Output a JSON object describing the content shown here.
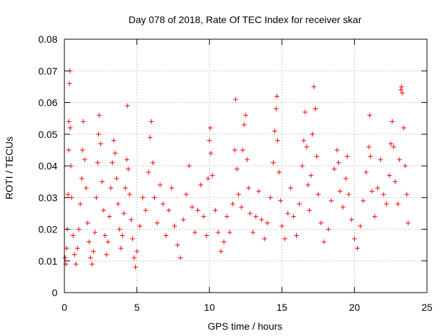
{
  "chart_data": {
    "type": "scatter",
    "title": "Day 078 of 2018, Rate Of TEC Index for receiver skar",
    "xlabel": "GPS time / hours",
    "ylabel": "ROTI / TECUs",
    "xlim": [
      0,
      25
    ],
    "ylim": [
      0,
      0.08
    ],
    "xticks": [
      {
        "value": 0,
        "label": "0"
      },
      {
        "value": 5,
        "label": "5"
      },
      {
        "value": 10,
        "label": "10"
      },
      {
        "value": 15,
        "label": "15"
      },
      {
        "value": 20,
        "label": "20"
      },
      {
        "value": 25,
        "label": "25"
      }
    ],
    "yticks": [
      {
        "value": 0,
        "label": "0"
      },
      {
        "value": 0.01,
        "label": "0.01"
      },
      {
        "value": 0.02,
        "label": "0.02"
      },
      {
        "value": 0.03,
        "label": "0.03"
      },
      {
        "value": 0.04,
        "label": "0.04"
      },
      {
        "value": 0.05,
        "label": "0.05"
      },
      {
        "value": 0.06,
        "label": "0.06"
      },
      {
        "value": 0.07,
        "label": "0.07"
      },
      {
        "value": 0.08,
        "label": "0.08"
      }
    ],
    "grid": true,
    "marker": "+",
    "color": "#ff0000",
    "series": [
      {
        "name": "ROTI",
        "points": [
          [
            0.05,
            0.011
          ],
          [
            0.1,
            0.009
          ],
          [
            0.15,
            0.014
          ],
          [
            0.2,
            0.02
          ],
          [
            0.25,
            0.031
          ],
          [
            0.3,
            0.045
          ],
          [
            0.3,
            0.054
          ],
          [
            0.35,
            0.066
          ],
          [
            0.38,
            0.07
          ],
          [
            0.4,
            0.052
          ],
          [
            0.45,
            0.04
          ],
          [
            0.5,
            0.03
          ],
          [
            0.6,
            0.018
          ],
          [
            0.7,
            0.012
          ],
          [
            0.8,
            0.009
          ],
          [
            0.9,
            0.014
          ],
          [
            1.0,
            0.02
          ],
          [
            1.1,
            0.028
          ],
          [
            1.2,
            0.036
          ],
          [
            1.25,
            0.045
          ],
          [
            1.3,
            0.054
          ],
          [
            1.4,
            0.042
          ],
          [
            1.5,
            0.033
          ],
          [
            1.6,
            0.022
          ],
          [
            1.7,
            0.016
          ],
          [
            1.8,
            0.011
          ],
          [
            1.9,
            0.009
          ],
          [
            2.0,
            0.013
          ],
          [
            2.1,
            0.019
          ],
          [
            2.2,
            0.03
          ],
          [
            2.3,
            0.041
          ],
          [
            2.35,
            0.05
          ],
          [
            2.4,
            0.056
          ],
          [
            2.5,
            0.047
          ],
          [
            2.6,
            0.035
          ],
          [
            2.7,
            0.026
          ],
          [
            2.8,
            0.018
          ],
          [
            2.9,
            0.012
          ],
          [
            3.0,
            0.016
          ],
          [
            3.1,
            0.024
          ],
          [
            3.2,
            0.033
          ],
          [
            3.3,
            0.041
          ],
          [
            3.4,
            0.048
          ],
          [
            3.5,
            0.044
          ],
          [
            3.6,
            0.036
          ],
          [
            3.7,
            0.028
          ],
          [
            3.8,
            0.02
          ],
          [
            3.9,
            0.014
          ],
          [
            4.0,
            0.018
          ],
          [
            4.1,
            0.025
          ],
          [
            4.2,
            0.033
          ],
          [
            4.3,
            0.042
          ],
          [
            4.35,
            0.059
          ],
          [
            4.4,
            0.039
          ],
          [
            4.5,
            0.031
          ],
          [
            4.6,
            0.023
          ],
          [
            4.7,
            0.017
          ],
          [
            4.8,
            0.011
          ],
          [
            4.9,
            0.008
          ],
          [
            5.0,
            0.013
          ],
          [
            5.2,
            0.021
          ],
          [
            5.4,
            0.03
          ],
          [
            5.6,
            0.026
          ],
          [
            5.8,
            0.038
          ],
          [
            5.9,
            0.049
          ],
          [
            6.0,
            0.054
          ],
          [
            6.1,
            0.041
          ],
          [
            6.2,
            0.03
          ],
          [
            6.4,
            0.022
          ],
          [
            6.6,
            0.034
          ],
          [
            6.8,
            0.028
          ],
          [
            7.0,
            0.018
          ],
          [
            7.2,
            0.026
          ],
          [
            7.4,
            0.033
          ],
          [
            7.6,
            0.021
          ],
          [
            7.8,
            0.015
          ],
          [
            8.0,
            0.011
          ],
          [
            8.2,
            0.023
          ],
          [
            8.4,
            0.031
          ],
          [
            8.6,
            0.04
          ],
          [
            8.8,
            0.027
          ],
          [
            9.0,
            0.019
          ],
          [
            9.2,
            0.026
          ],
          [
            9.4,
            0.034
          ],
          [
            9.6,
            0.024
          ],
          [
            9.8,
            0.018
          ],
          [
            9.9,
            0.036
          ],
          [
            10.0,
            0.048
          ],
          [
            10.05,
            0.052
          ],
          [
            10.1,
            0.044
          ],
          [
            10.2,
            0.037
          ],
          [
            10.4,
            0.026
          ],
          [
            10.6,
            0.019
          ],
          [
            10.8,
            0.013
          ],
          [
            11.0,
            0.016
          ],
          [
            11.2,
            0.024
          ],
          [
            11.4,
            0.019
          ],
          [
            11.6,
            0.028
          ],
          [
            11.75,
            0.045
          ],
          [
            11.8,
            0.061
          ],
          [
            11.9,
            0.039
          ],
          [
            12.0,
            0.031
          ],
          [
            12.2,
            0.027
          ],
          [
            12.3,
            0.045
          ],
          [
            12.4,
            0.053
          ],
          [
            12.5,
            0.056
          ],
          [
            12.6,
            0.042
          ],
          [
            12.7,
            0.033
          ],
          [
            12.8,
            0.025
          ],
          [
            13.0,
            0.019
          ],
          [
            13.2,
            0.024
          ],
          [
            13.4,
            0.032
          ],
          [
            13.6,
            0.023
          ],
          [
            13.8,
            0.017
          ],
          [
            14.0,
            0.022
          ],
          [
            14.2,
            0.03
          ],
          [
            14.4,
            0.041
          ],
          [
            14.5,
            0.051
          ],
          [
            14.6,
            0.058
          ],
          [
            14.65,
            0.062
          ],
          [
            14.7,
            0.048
          ],
          [
            14.8,
            0.038
          ],
          [
            14.9,
            0.029
          ],
          [
            15.0,
            0.021
          ],
          [
            15.2,
            0.017
          ],
          [
            15.4,
            0.025
          ],
          [
            15.6,
            0.033
          ],
          [
            15.8,
            0.024
          ],
          [
            16.0,
            0.018
          ],
          [
            16.2,
            0.028
          ],
          [
            16.4,
            0.04
          ],
          [
            16.5,
            0.048
          ],
          [
            16.6,
            0.057
          ],
          [
            16.7,
            0.046
          ],
          [
            16.8,
            0.034
          ],
          [
            16.9,
            0.026
          ],
          [
            17.0,
            0.037
          ],
          [
            17.1,
            0.05
          ],
          [
            17.2,
            0.065
          ],
          [
            17.3,
            0.058
          ],
          [
            17.4,
            0.043
          ],
          [
            17.5,
            0.031
          ],
          [
            17.7,
            0.022
          ],
          [
            17.9,
            0.016
          ],
          [
            18.2,
            0.02
          ],
          [
            18.4,
            0.029
          ],
          [
            18.6,
            0.039
          ],
          [
            18.8,
            0.045
          ],
          [
            18.9,
            0.041
          ],
          [
            19.0,
            0.032
          ],
          [
            19.2,
            0.027
          ],
          [
            19.4,
            0.036
          ],
          [
            19.5,
            0.043
          ],
          [
            19.6,
            0.031
          ],
          [
            19.8,
            0.023
          ],
          [
            20.0,
            0.017
          ],
          [
            20.2,
            0.014
          ],
          [
            20.4,
            0.021
          ],
          [
            20.6,
            0.029
          ],
          [
            20.8,
            0.038
          ],
          [
            21.0,
            0.046
          ],
          [
            21.05,
            0.056
          ],
          [
            21.1,
            0.043
          ],
          [
            21.2,
            0.032
          ],
          [
            21.4,
            0.024
          ],
          [
            21.6,
            0.033
          ],
          [
            21.8,
            0.042
          ],
          [
            22.0,
            0.031
          ],
          [
            22.2,
            0.028
          ],
          [
            22.4,
            0.037
          ],
          [
            22.5,
            0.047
          ],
          [
            22.6,
            0.054
          ],
          [
            22.7,
            0.046
          ],
          [
            22.8,
            0.035
          ],
          [
            23.0,
            0.028
          ],
          [
            23.1,
            0.042
          ],
          [
            23.2,
            0.064
          ],
          [
            23.25,
            0.065
          ],
          [
            23.3,
            0.063
          ],
          [
            23.4,
            0.052
          ],
          [
            23.5,
            0.04
          ],
          [
            23.6,
            0.031
          ],
          [
            23.7,
            0.022
          ]
        ]
      }
    ]
  }
}
